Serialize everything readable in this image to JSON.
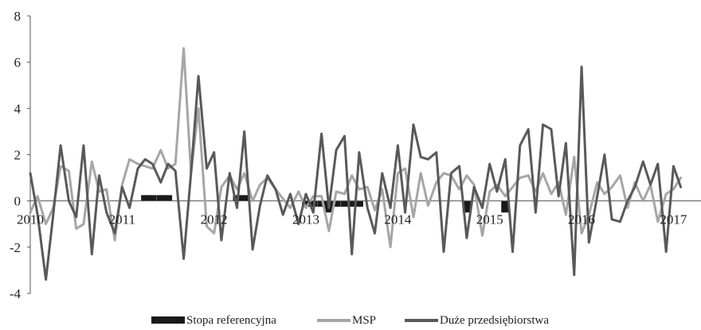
{
  "chart_data": {
    "type": "line",
    "title": "",
    "xlabel": "",
    "ylabel": "",
    "ylim": [
      -4,
      8
    ],
    "yticks": [
      "8",
      "6",
      "4",
      "2",
      "0",
      "-2",
      "-4"
    ],
    "xlim": [
      2010,
      2017.3
    ],
    "xticks": [
      "2010",
      "2011",
      "2012",
      "2013",
      "2014",
      "2015",
      "2016",
      "2017"
    ],
    "grid": false,
    "legend_position": "bottom",
    "series": [
      {
        "name": "Stopa referencyjna",
        "type": "bar",
        "color": "#1a1a1a",
        "x": [
          2011.25,
          2011.33,
          2011.42,
          2011.5,
          2012.25,
          2012.33,
          2013.0,
          2013.08,
          2013.17,
          2013.25,
          2013.33,
          2013.42,
          2013.5,
          2013.58,
          2014.75,
          2015.17
        ],
        "values": [
          0.25,
          0.25,
          0.25,
          0.25,
          0.25,
          0.25,
          -0.25,
          -0.25,
          -0.25,
          -0.5,
          -0.25,
          -0.25,
          -0.25,
          -0.25,
          -0.5,
          -0.5
        ]
      },
      {
        "name": "MSP",
        "type": "line",
        "color": "#a6a6a6",
        "x": [
          2010.0,
          2010.08,
          2010.17,
          2010.25,
          2010.33,
          2010.42,
          2010.5,
          2010.58,
          2010.67,
          2010.75,
          2010.83,
          2010.92,
          2011.0,
          2011.08,
          2011.17,
          2011.25,
          2011.33,
          2011.42,
          2011.5,
          2011.58,
          2011.67,
          2011.75,
          2011.83,
          2011.92,
          2012.0,
          2012.08,
          2012.17,
          2012.25,
          2012.33,
          2012.42,
          2012.5,
          2012.58,
          2012.67,
          2012.75,
          2012.83,
          2012.92,
          2013.0,
          2013.08,
          2013.17,
          2013.25,
          2013.33,
          2013.42,
          2013.5,
          2013.58,
          2013.67,
          2013.75,
          2013.83,
          2013.92,
          2014.0,
          2014.08,
          2014.17,
          2014.25,
          2014.33,
          2014.42,
          2014.5,
          2014.58,
          2014.67,
          2014.75,
          2014.83,
          2014.92,
          2015.0,
          2015.08,
          2015.17,
          2015.25,
          2015.33,
          2015.42,
          2015.5,
          2015.58,
          2015.67,
          2015.75,
          2015.83,
          2015.92,
          2016.0,
          2016.08,
          2016.17,
          2016.25,
          2016.33,
          2016.42,
          2016.5,
          2016.58,
          2016.67,
          2016.75,
          2016.83,
          2016.92,
          2017.0,
          2017.08
        ],
        "values": [
          -0.5,
          0.2,
          -1.0,
          -0.3,
          1.5,
          1.3,
          -1.2,
          -1.0,
          1.7,
          0.4,
          0.5,
          -1.7,
          0.7,
          1.8,
          1.6,
          1.5,
          1.4,
          2.2,
          1.4,
          1.6,
          6.6,
          1.2,
          4.0,
          -1.1,
          -1.4,
          0.6,
          1.1,
          0.5,
          1.2,
          0.0,
          0.7,
          1.0,
          0.5,
          0.1,
          -0.3,
          0.4,
          -0.3,
          0.2,
          0.2,
          -1.3,
          0.4,
          0.3,
          1.1,
          0.5,
          0.6,
          -0.4,
          0.5,
          -2.0,
          1.2,
          1.4,
          -0.7,
          1.2,
          -0.2,
          0.8,
          1.2,
          1.1,
          0.5,
          1.1,
          0.7,
          -1.5,
          0.4,
          0.7,
          0.2,
          0.6,
          1.0,
          1.1,
          0.4,
          1.2,
          0.3,
          0.8,
          -0.6,
          1.9,
          -1.4,
          -0.6,
          0.8,
          0.3,
          0.6,
          1.1,
          -0.3,
          0.8,
          0.0,
          0.7,
          -0.9,
          0.3,
          0.5,
          1.0
        ]
      },
      {
        "name": "Duże przedsiębiorstwa",
        "type": "line",
        "color": "#595959",
        "x": [
          2010.0,
          2010.08,
          2010.17,
          2010.25,
          2010.33,
          2010.42,
          2010.5,
          2010.58,
          2010.67,
          2010.75,
          2010.83,
          2010.92,
          2011.0,
          2011.08,
          2011.17,
          2011.25,
          2011.33,
          2011.42,
          2011.5,
          2011.58,
          2011.67,
          2011.75,
          2011.83,
          2011.92,
          2012.0,
          2012.08,
          2012.17,
          2012.25,
          2012.33,
          2012.42,
          2012.5,
          2012.58,
          2012.67,
          2012.75,
          2012.83,
          2012.92,
          2013.0,
          2013.08,
          2013.17,
          2013.25,
          2013.33,
          2013.42,
          2013.5,
          2013.58,
          2013.67,
          2013.75,
          2013.83,
          2013.92,
          2014.0,
          2014.08,
          2014.17,
          2014.25,
          2014.33,
          2014.42,
          2014.5,
          2014.58,
          2014.67,
          2014.75,
          2014.83,
          2014.92,
          2015.0,
          2015.08,
          2015.17,
          2015.25,
          2015.33,
          2015.42,
          2015.5,
          2015.58,
          2015.67,
          2015.75,
          2015.83,
          2015.92,
          2016.0,
          2016.08,
          2016.17,
          2016.25,
          2016.33,
          2016.42,
          2016.5,
          2016.58,
          2016.67,
          2016.75,
          2016.83,
          2016.92,
          2017.0,
          2017.08
        ],
        "values": [
          1.2,
          -0.6,
          -3.4,
          -0.6,
          2.4,
          0.0,
          -0.7,
          2.4,
          -2.3,
          1.1,
          -0.5,
          -1.4,
          0.6,
          -0.3,
          1.4,
          1.8,
          1.6,
          0.8,
          1.6,
          1.3,
          -2.5,
          1.2,
          5.4,
          1.4,
          2.1,
          -1.7,
          1.2,
          -0.3,
          3.0,
          -2.1,
          -0.2,
          1.1,
          0.5,
          -0.6,
          0.3,
          -1.0,
          0.3,
          -0.5,
          2.9,
          -0.3,
          2.2,
          2.8,
          -2.3,
          2.1,
          -0.3,
          -1.4,
          1.2,
          -0.3,
          2.4,
          -0.5,
          3.3,
          1.9,
          1.8,
          2.1,
          -2.2,
          1.2,
          1.5,
          -1.6,
          0.6,
          -0.3,
          1.6,
          0.4,
          1.8,
          -2.2,
          2.4,
          3.1,
          -0.5,
          3.3,
          3.1,
          0.2,
          2.5,
          -3.2,
          5.8,
          -1.8,
          0.2,
          2.0,
          -0.8,
          -0.9,
          0.0,
          0.6,
          1.7,
          0.7,
          1.6,
          -2.2,
          1.5,
          0.6
        ]
      }
    ]
  }
}
